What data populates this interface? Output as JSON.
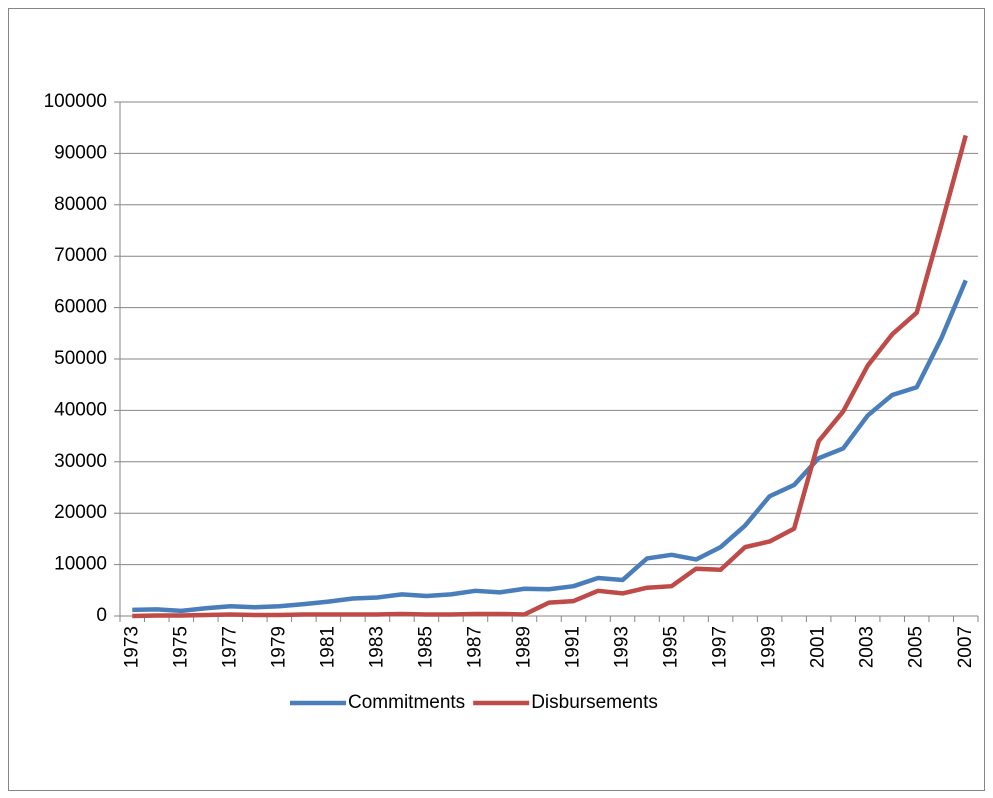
{
  "chart_data": {
    "type": "line",
    "categories": [
      "1973",
      null,
      "1975",
      null,
      "1977",
      null,
      "1979",
      null,
      "1981",
      null,
      "1983",
      null,
      "1985",
      null,
      "1987",
      null,
      "1989",
      null,
      "1991",
      null,
      "1993",
      null,
      "1995",
      null,
      "1997",
      null,
      "1999",
      null,
      "2001",
      null,
      "2003",
      null,
      "2005",
      null,
      "2007"
    ],
    "series": [
      {
        "name": "Commitments",
        "color": "#4a7ebb",
        "values": [
          1200,
          1300,
          1000,
          1500,
          1900,
          1700,
          1900,
          2300,
          2800,
          3400,
          3600,
          4200,
          3900,
          4200,
          4900,
          4600,
          5300,
          5200,
          5800,
          7400,
          7000,
          11200,
          11900,
          11000,
          13400,
          17600,
          23300,
          25500,
          30700,
          32600,
          39000,
          43000,
          44500,
          54000,
          65300
        ]
      },
      {
        "name": "Disbursements",
        "color": "#be4b48",
        "values": [
          0,
          100,
          100,
          200,
          300,
          200,
          200,
          300,
          300,
          300,
          300,
          400,
          300,
          300,
          400,
          400,
          300,
          2600,
          2900,
          4900,
          4400,
          5500,
          5800,
          9200,
          9000,
          13400,
          14500,
          17000,
          34000,
          39800,
          48700,
          54800,
          59000,
          76000,
          93500
        ]
      }
    ],
    "ylim": [
      0,
      100000
    ],
    "yticks": [
      0,
      10000,
      20000,
      30000,
      40000,
      50000,
      60000,
      70000,
      80000,
      90000,
      100000
    ],
    "grid": true,
    "legend": "bottom"
  }
}
